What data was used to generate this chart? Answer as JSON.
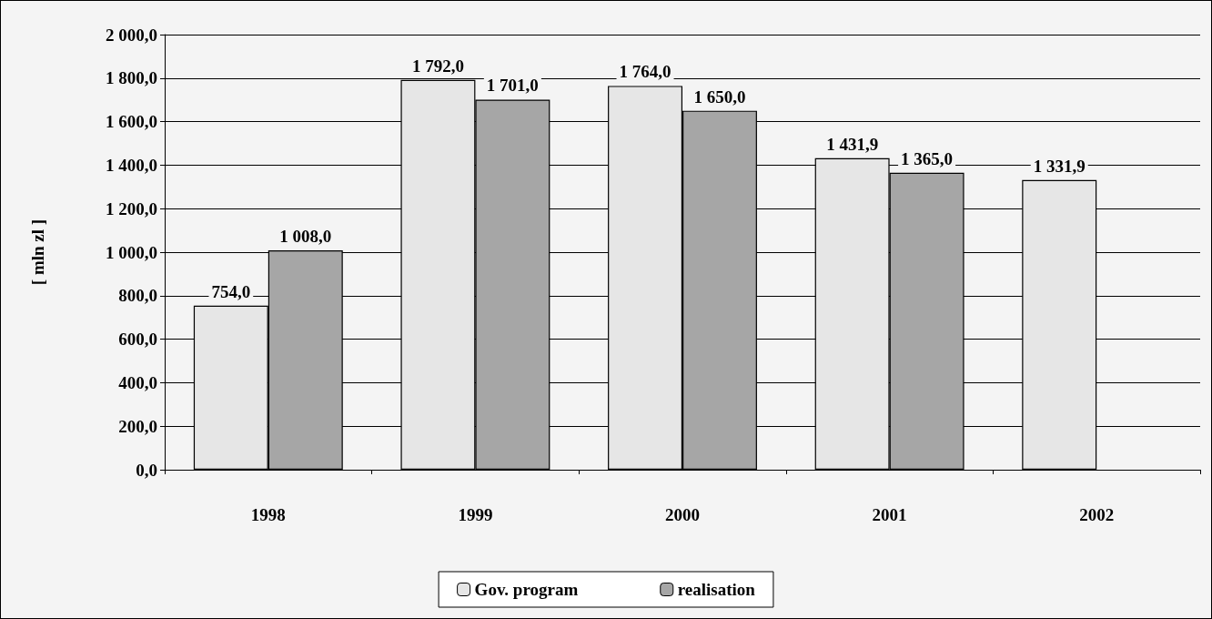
{
  "chart_data": {
    "type": "bar",
    "ylabel": "[ mln zl ]",
    "categories": [
      "1998",
      "1999",
      "2000",
      "2001",
      "2002"
    ],
    "series": [
      {
        "name": "Gov. program",
        "color": "#e6e6e6",
        "values": [
          754.0,
          1792.0,
          1764.0,
          1431.9,
          1331.9
        ],
        "value_labels": [
          "754,0",
          "1 792,0",
          "1 764,0",
          "1 431,9",
          "1 331,9"
        ]
      },
      {
        "name": "realisation",
        "color": "#a6a6a6",
        "values": [
          1008.0,
          1701.0,
          1650.0,
          1365.0,
          null
        ],
        "value_labels": [
          "1 008,0",
          "1 701,0",
          "1 650,0",
          "1 365,0",
          null
        ]
      }
    ],
    "ylim": [
      0,
      2000
    ],
    "yticks": [
      {
        "value": 0,
        "label": "0,0"
      },
      {
        "value": 200,
        "label": "200,0"
      },
      {
        "value": 400,
        "label": "400,0"
      },
      {
        "value": 600,
        "label": "600,0"
      },
      {
        "value": 800,
        "label": "800,0"
      },
      {
        "value": 1000,
        "label": "1 000,0"
      },
      {
        "value": 1200,
        "label": "1 200,0"
      },
      {
        "value": 1400,
        "label": "1 400,0"
      },
      {
        "value": 1600,
        "label": "1 600,0"
      },
      {
        "value": 1800,
        "label": "1 800,0"
      },
      {
        "value": 2000,
        "label": "2 000,0"
      }
    ],
    "grid": "y",
    "legend": "bottom"
  }
}
